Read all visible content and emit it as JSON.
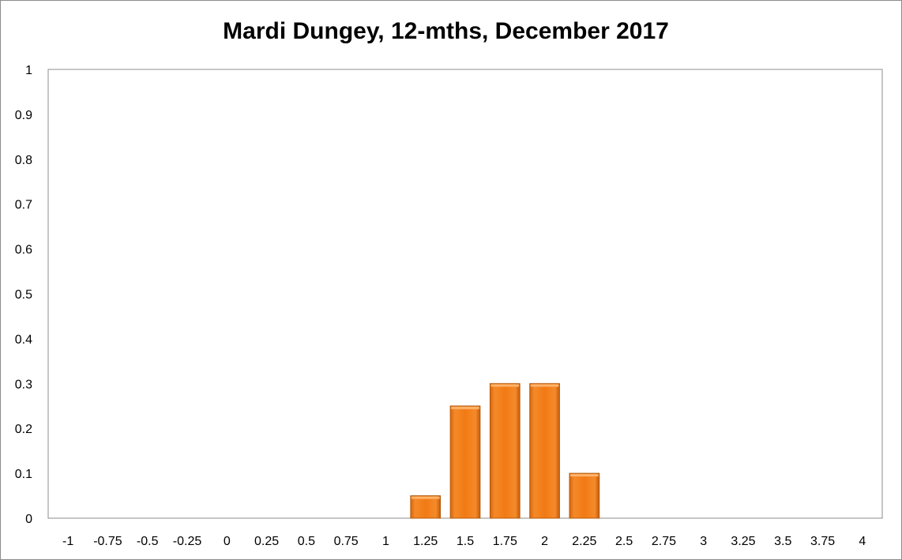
{
  "chart_data": {
    "type": "bar",
    "title": "Mardi Dungey, 12-mths, December 2017",
    "xlabel": "",
    "ylabel": "",
    "categories": [
      "-1",
      "-0.75",
      "-0.5",
      "-0.25",
      "0",
      "0.25",
      "0.5",
      "0.75",
      "1",
      "1.25",
      "1.5",
      "1.75",
      "2",
      "2.25",
      "2.5",
      "2.75",
      "3",
      "3.25",
      "3.5",
      "3.75",
      "4"
    ],
    "values": [
      0,
      0,
      0,
      0,
      0,
      0,
      0,
      0,
      0,
      0.05,
      0.25,
      0.3,
      0.3,
      0.1,
      0,
      0,
      0,
      0,
      0,
      0,
      0
    ],
    "ylim": [
      0,
      1
    ],
    "yticks": [
      "0",
      "0.1",
      "0.2",
      "0.3",
      "0.4",
      "0.5",
      "0.6",
      "0.7",
      "0.8",
      "0.9",
      "1"
    ],
    "grid": false,
    "bar_color": "#f07d1a",
    "bar_edge_color": "#b35a0c"
  }
}
